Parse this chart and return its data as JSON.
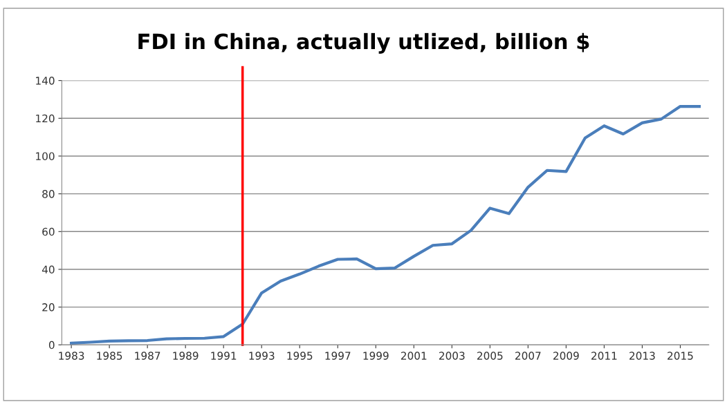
{
  "chart_data": {
    "type": "line",
    "title": "FDI in China, actually utlized, billion $",
    "x": [
      1983,
      1984,
      1985,
      1986,
      1987,
      1988,
      1989,
      1990,
      1991,
      1992,
      1993,
      1994,
      1995,
      1996,
      1997,
      1998,
      1999,
      2000,
      2001,
      2002,
      2003,
      2004,
      2005,
      2006,
      2007,
      2008,
      2009,
      2010,
      2011,
      2012,
      2013,
      2014,
      2015,
      2016
    ],
    "series": [
      {
        "color": "#4a7ebb",
        "values": [
          0.9,
          1.4,
          2.0,
          2.2,
          2.3,
          3.2,
          3.4,
          3.5,
          4.4,
          11.0,
          27.5,
          33.8,
          37.5,
          41.7,
          45.3,
          45.5,
          40.3,
          40.7,
          46.9,
          52.7,
          53.5,
          60.6,
          72.4,
          69.5,
          83.5,
          92.4,
          91.8,
          109.6,
          116.0,
          111.7,
          117.6,
          119.6,
          126.3,
          126.3
        ]
      }
    ],
    "xlim": [
      1982.5,
      2016.5
    ],
    "xticks": [
      1983,
      1985,
      1987,
      1989,
      1991,
      1993,
      1995,
      1997,
      1999,
      2001,
      2003,
      2005,
      2007,
      2009,
      2011,
      2013,
      2015
    ],
    "ylim": [
      0,
      140
    ],
    "yticks": [
      0,
      20,
      40,
      60,
      80,
      100,
      120,
      140
    ],
    "ref_lines": [
      {
        "axis": "x",
        "value": 1992,
        "color": "#ff0000"
      }
    ],
    "grid": "y",
    "legend": false
  }
}
